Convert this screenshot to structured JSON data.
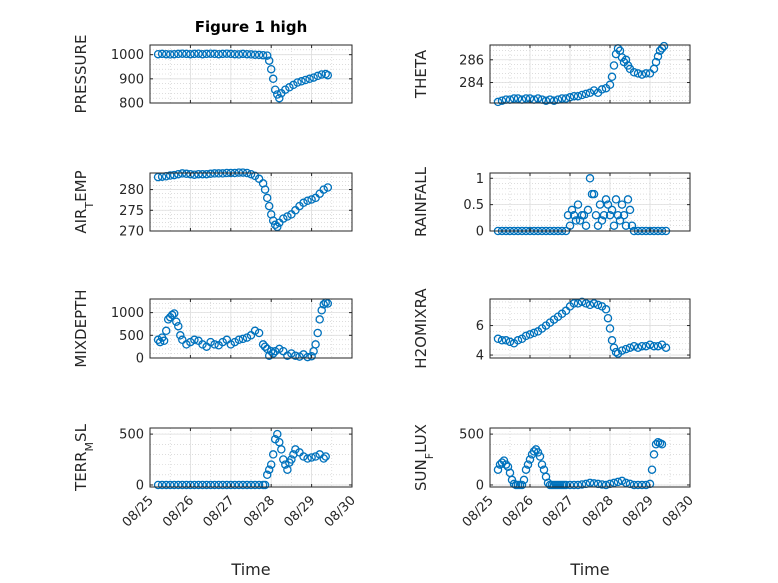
{
  "chart_data": [
    {
      "type": "scatter",
      "title": "Figure 1 high",
      "ylabel": "PRESSURE",
      "ylim": [
        800,
        1040
      ],
      "yticks": [
        800,
        900,
        1000
      ],
      "grid": true,
      "minor_grid": true,
      "xlim": [
        "08/25",
        "08/30"
      ],
      "series": [
        {
          "marker": "circle",
          "color": "#0072BD",
          "x": [
            0.2,
            0.3,
            0.4,
            0.5,
            0.6,
            0.7,
            0.8,
            0.9,
            1.0,
            1.1,
            1.2,
            1.3,
            1.4,
            1.5,
            1.6,
            1.7,
            1.8,
            1.9,
            2.0,
            2.1,
            2.2,
            2.3,
            2.4,
            2.5,
            2.6,
            2.7,
            2.8,
            2.9,
            2.95,
            3.0,
            3.05,
            3.1,
            3.15,
            3.2,
            3.25,
            3.35,
            3.45,
            3.55,
            3.65,
            3.75,
            3.85,
            3.95,
            4.05,
            4.15,
            4.25,
            4.35,
            4.4
          ],
          "y": [
            1002,
            1003,
            1002,
            1001,
            1002,
            1003,
            1004,
            1003,
            1002,
            1003,
            1004,
            1002,
            1003,
            1004,
            1003,
            1002,
            1003,
            1004,
            1003,
            1002,
            1001,
            1003,
            1002,
            1001,
            1000,
            999,
            998,
            996,
            975,
            940,
            900,
            855,
            835,
            820,
            840,
            855,
            865,
            875,
            885,
            890,
            895,
            900,
            905,
            912,
            918,
            920,
            915
          ]
        }
      ]
    },
    {
      "type": "scatter",
      "ylabel": "THETA",
      "ylim": [
        282.2,
        287.3
      ],
      "yticks": [
        284,
        286
      ],
      "grid": true,
      "minor_grid": true,
      "xlim": [
        "08/25",
        "08/30"
      ],
      "series": [
        {
          "marker": "circle",
          "color": "#0072BD",
          "x": [
            0.2,
            0.3,
            0.4,
            0.5,
            0.6,
            0.7,
            0.8,
            0.9,
            1.0,
            1.1,
            1.2,
            1.3,
            1.4,
            1.5,
            1.6,
            1.7,
            1.8,
            1.9,
            2.0,
            2.1,
            2.2,
            2.3,
            2.4,
            2.5,
            2.6,
            2.7,
            2.8,
            2.9,
            3.0,
            3.05,
            3.1,
            3.15,
            3.2,
            3.25,
            3.3,
            3.35,
            3.4,
            3.45,
            3.5,
            3.6,
            3.7,
            3.8,
            3.9,
            4.0,
            4.1,
            4.15,
            4.2,
            4.25,
            4.3,
            4.35
          ],
          "y": [
            282.3,
            282.4,
            282.5,
            282.5,
            282.6,
            282.6,
            282.5,
            282.6,
            282.6,
            282.5,
            282.6,
            282.5,
            282.4,
            282.5,
            282.4,
            282.5,
            282.6,
            282.6,
            282.7,
            282.8,
            282.8,
            282.9,
            283.0,
            283.1,
            283.3,
            283.1,
            283.4,
            283.5,
            283.8,
            284.5,
            285.5,
            286.5,
            287.0,
            286.8,
            286.2,
            285.8,
            286.0,
            285.5,
            285.2,
            284.9,
            284.8,
            284.7,
            284.8,
            284.8,
            285.2,
            285.8,
            286.3,
            286.8,
            287.0,
            287.2
          ]
        }
      ]
    },
    {
      "type": "scatter",
      "ylabel": "AIR_TEMP",
      "ylim": [
        270,
        284
      ],
      "yticks": [
        270,
        275,
        280
      ],
      "grid": true,
      "minor_grid": true,
      "xlim": [
        "08/25",
        "08/30"
      ],
      "series": [
        {
          "marker": "circle",
          "color": "#0072BD",
          "x": [
            0.2,
            0.3,
            0.4,
            0.5,
            0.6,
            0.7,
            0.8,
            0.9,
            1.0,
            1.1,
            1.2,
            1.3,
            1.4,
            1.5,
            1.6,
            1.7,
            1.8,
            1.9,
            2.0,
            2.1,
            2.2,
            2.3,
            2.4,
            2.5,
            2.6,
            2.7,
            2.8,
            2.85,
            2.9,
            2.95,
            3.0,
            3.05,
            3.1,
            3.15,
            3.2,
            3.3,
            3.4,
            3.5,
            3.6,
            3.7,
            3.8,
            3.9,
            4.0,
            4.1,
            4.2,
            4.3,
            4.4
          ],
          "y": [
            283.0,
            283.1,
            283.2,
            283.4,
            283.5,
            283.7,
            283.9,
            283.8,
            283.7,
            283.6,
            283.7,
            283.7,
            283.7,
            283.8,
            283.9,
            283.9,
            283.9,
            284.0,
            284.0,
            284.0,
            284.1,
            284.1,
            284.0,
            283.7,
            283.3,
            282.6,
            281.5,
            280.0,
            278.0,
            276.0,
            274.0,
            272.5,
            271.5,
            271.0,
            272.0,
            273.0,
            273.5,
            274.0,
            275.0,
            276.0,
            276.8,
            277.3,
            277.6,
            278.0,
            279.0,
            280.0,
            280.5
          ]
        }
      ]
    },
    {
      "type": "scatter",
      "ylabel": "RAINFALL",
      "ylim": [
        0,
        1.1
      ],
      "yticks": [
        0,
        0.5,
        1
      ],
      "grid": true,
      "minor_grid": true,
      "xlim": [
        "08/25",
        "08/30"
      ],
      "series": [
        {
          "marker": "circle",
          "color": "#0072BD",
          "x": [
            0.2,
            0.3,
            0.4,
            0.5,
            0.6,
            0.7,
            0.8,
            0.9,
            1.0,
            1.1,
            1.2,
            1.3,
            1.4,
            1.5,
            1.6,
            1.7,
            1.8,
            1.9,
            1.95,
            2.0,
            2.05,
            2.1,
            2.15,
            2.2,
            2.25,
            2.3,
            2.35,
            2.4,
            2.45,
            2.5,
            2.55,
            2.6,
            2.65,
            2.7,
            2.75,
            2.8,
            2.85,
            2.9,
            2.95,
            3.0,
            3.05,
            3.1,
            3.15,
            3.2,
            3.25,
            3.3,
            3.35,
            3.4,
            3.45,
            3.5,
            3.55,
            3.6,
            3.7,
            3.8,
            3.9,
            4.0,
            4.1,
            4.2,
            4.3,
            4.4
          ],
          "y": [
            0,
            0,
            0,
            0,
            0,
            0,
            0,
            0,
            0,
            0,
            0,
            0,
            0,
            0,
            0,
            0,
            0,
            0,
            0.3,
            0.1,
            0.4,
            0.3,
            0.2,
            0.5,
            0.2,
            0.3,
            0.3,
            0.1,
            0.4,
            1.0,
            0.7,
            0.7,
            0.3,
            0.1,
            0.5,
            0.2,
            0.3,
            0.6,
            0.5,
            0.3,
            0.4,
            0.1,
            0.6,
            0.3,
            0.2,
            0.5,
            0.3,
            0.1,
            0.6,
            0.4,
            0.1,
            0,
            0,
            0,
            0,
            0,
            0,
            0,
            0,
            0
          ]
        }
      ]
    },
    {
      "type": "scatter",
      "ylabel": "MIXDEPTH",
      "ylim": [
        0,
        1300
      ],
      "yticks": [
        0,
        500,
        1000
      ],
      "grid": true,
      "minor_grid": true,
      "xlim": [
        "08/25",
        "08/30"
      ],
      "series": [
        {
          "marker": "circle",
          "color": "#0072BD",
          "x": [
            0.2,
            0.25,
            0.3,
            0.35,
            0.4,
            0.45,
            0.5,
            0.55,
            0.6,
            0.65,
            0.7,
            0.75,
            0.8,
            0.9,
            1.0,
            1.1,
            1.2,
            1.3,
            1.4,
            1.5,
            1.6,
            1.7,
            1.8,
            1.9,
            2.0,
            2.1,
            2.2,
            2.3,
            2.4,
            2.5,
            2.6,
            2.7,
            2.8,
            2.85,
            2.9,
            2.95,
            3.0,
            3.05,
            3.1,
            3.2,
            3.3,
            3.4,
            3.5,
            3.6,
            3.7,
            3.8,
            3.9,
            4.0,
            4.05,
            4.1,
            4.15,
            4.2,
            4.25,
            4.3,
            4.35,
            4.4
          ],
          "y": [
            400,
            350,
            450,
            380,
            600,
            850,
            900,
            950,
            980,
            800,
            700,
            500,
            400,
            300,
            350,
            400,
            380,
            300,
            250,
            350,
            300,
            280,
            350,
            400,
            300,
            350,
            400,
            420,
            450,
            500,
            600,
            550,
            300,
            250,
            200,
            50,
            150,
            100,
            150,
            200,
            150,
            50,
            100,
            50,
            30,
            80,
            20,
            40,
            150,
            300,
            550,
            850,
            1050,
            1180,
            1220,
            1200
          ]
        }
      ]
    },
    {
      "type": "scatter",
      "ylabel": "H2OMIXRA",
      "ylim": [
        3.8,
        7.8
      ],
      "yticks": [
        4,
        6
      ],
      "grid": true,
      "minor_grid": true,
      "xlim": [
        "08/25",
        "08/30"
      ],
      "series": [
        {
          "marker": "circle",
          "color": "#0072BD",
          "x": [
            0.2,
            0.3,
            0.4,
            0.5,
            0.6,
            0.7,
            0.8,
            0.9,
            1.0,
            1.1,
            1.2,
            1.3,
            1.4,
            1.5,
            1.6,
            1.7,
            1.8,
            1.9,
            2.0,
            2.1,
            2.2,
            2.3,
            2.4,
            2.5,
            2.6,
            2.7,
            2.8,
            2.9,
            2.95,
            3.0,
            3.05,
            3.1,
            3.15,
            3.2,
            3.3,
            3.4,
            3.5,
            3.6,
            3.7,
            3.8,
            3.9,
            4.0,
            4.1,
            4.2,
            4.3,
            4.4
          ],
          "y": [
            5.1,
            5.0,
            5.0,
            4.9,
            4.8,
            5.0,
            5.1,
            5.3,
            5.4,
            5.5,
            5.6,
            5.8,
            6.0,
            6.2,
            6.4,
            6.6,
            6.8,
            7.0,
            7.3,
            7.5,
            7.5,
            7.6,
            7.5,
            7.4,
            7.5,
            7.4,
            7.3,
            7.1,
            6.5,
            5.8,
            5.0,
            4.5,
            4.2,
            4.1,
            4.3,
            4.4,
            4.5,
            4.6,
            4.5,
            4.6,
            4.6,
            4.7,
            4.6,
            4.6,
            4.7,
            4.5
          ]
        }
      ]
    },
    {
      "type": "scatter",
      "ylabel": "TERR_MSL",
      "ylim": [
        -20,
        560
      ],
      "yticks": [
        0,
        500
      ],
      "grid": true,
      "minor_grid": true,
      "xlim": [
        "08/25",
        "08/30"
      ],
      "xticks": [
        "08/25",
        "08/26",
        "08/27",
        "08/28",
        "08/29",
        "08/30"
      ],
      "xlabel": "Time",
      "series": [
        {
          "marker": "circle",
          "color": "#0072BD",
          "x": [
            0.2,
            0.3,
            0.4,
            0.5,
            0.6,
            0.7,
            0.8,
            0.9,
            1.0,
            1.1,
            1.2,
            1.3,
            1.4,
            1.5,
            1.6,
            1.7,
            1.8,
            1.9,
            2.0,
            2.1,
            2.2,
            2.3,
            2.4,
            2.5,
            2.6,
            2.7,
            2.8,
            2.85,
            2.9,
            2.95,
            3.0,
            3.05,
            3.1,
            3.15,
            3.2,
            3.25,
            3.3,
            3.35,
            3.4,
            3.45,
            3.5,
            3.55,
            3.6,
            3.7,
            3.8,
            3.9,
            4.0,
            4.1,
            4.2,
            4.3,
            4.35
          ],
          "y": [
            0,
            0,
            0,
            0,
            0,
            0,
            0,
            0,
            0,
            0,
            0,
            0,
            0,
            0,
            0,
            0,
            0,
            0,
            0,
            0,
            0,
            0,
            0,
            0,
            0,
            0,
            0,
            0,
            100,
            150,
            200,
            300,
            450,
            500,
            420,
            350,
            250,
            200,
            150,
            220,
            250,
            300,
            350,
            320,
            280,
            260,
            270,
            280,
            300,
            260,
            280
          ]
        }
      ]
    },
    {
      "type": "scatter",
      "ylabel": "SUN_FLUX",
      "ylim": [
        -20,
        560
      ],
      "yticks": [
        0,
        500
      ],
      "grid": true,
      "minor_grid": true,
      "xlim": [
        "08/25",
        "08/30"
      ],
      "xticks": [
        "08/25",
        "08/26",
        "08/27",
        "08/28",
        "08/29",
        "08/30"
      ],
      "xlabel": "Time",
      "series": [
        {
          "marker": "circle",
          "color": "#0072BD",
          "x": [
            0.2,
            0.25,
            0.3,
            0.35,
            0.4,
            0.45,
            0.5,
            0.55,
            0.6,
            0.65,
            0.7,
            0.75,
            0.8,
            0.85,
            0.9,
            0.95,
            1.0,
            1.05,
            1.1,
            1.15,
            1.2,
            1.25,
            1.3,
            1.35,
            1.4,
            1.45,
            1.5,
            1.55,
            1.6,
            1.65,
            1.7,
            1.75,
            1.8,
            1.85,
            1.9,
            2.0,
            2.1,
            2.2,
            2.3,
            2.4,
            2.5,
            2.6,
            2.7,
            2.8,
            2.9,
            3.0,
            3.1,
            3.2,
            3.3,
            3.4,
            3.5,
            3.6,
            3.7,
            3.8,
            3.9,
            4.0,
            4.05,
            4.1,
            4.15,
            4.2,
            4.25,
            4.3
          ],
          "y": [
            150,
            200,
            220,
            240,
            200,
            180,
            120,
            50,
            10,
            0,
            0,
            0,
            0,
            50,
            150,
            200,
            250,
            300,
            330,
            350,
            320,
            280,
            200,
            150,
            80,
            20,
            0,
            0,
            0,
            0,
            0,
            0,
            0,
            0,
            0,
            0,
            0,
            0,
            5,
            10,
            20,
            15,
            10,
            5,
            0,
            10,
            20,
            30,
            40,
            20,
            10,
            0,
            0,
            0,
            0,
            10,
            150,
            300,
            400,
            420,
            410,
            400
          ]
        }
      ]
    }
  ]
}
